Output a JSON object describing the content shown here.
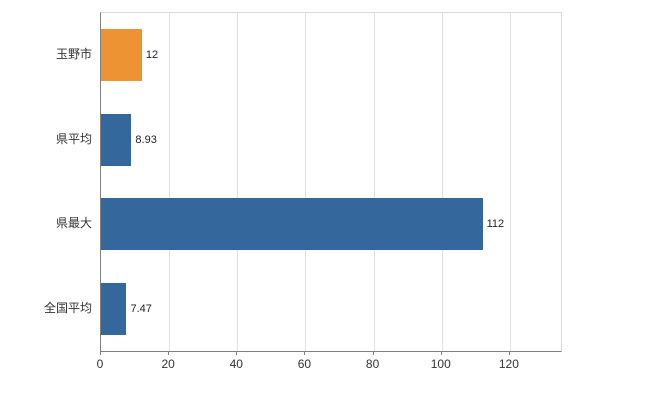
{
  "chart_data": {
    "type": "bar",
    "orientation": "horizontal",
    "title": "",
    "xlabel": "",
    "ylabel": "",
    "categories": [
      "玉野市",
      "県平均",
      "県最大",
      "全国平均"
    ],
    "values": [
      12,
      8.93,
      112,
      7.47
    ],
    "value_labels": [
      "12",
      "8.93",
      "112",
      "7.47"
    ],
    "bar_colors": [
      "#ED9333",
      "#34689D",
      "#34689D",
      "#34689D"
    ],
    "x_ticks": [
      0,
      20,
      40,
      60,
      80,
      100,
      120
    ],
    "x_tick_labels": [
      "0",
      "20",
      "40",
      "60",
      "80",
      "100",
      "120"
    ],
    "xlim": [
      0,
      135
    ],
    "grid": "vertical",
    "legend": "none",
    "colors": {
      "highlight_bar": "#ED9333",
      "default_bar": "#34689D",
      "gridline": "#e2e2e2",
      "axis_line": "#808080",
      "background": "#ffffff",
      "text": "#333333"
    }
  }
}
